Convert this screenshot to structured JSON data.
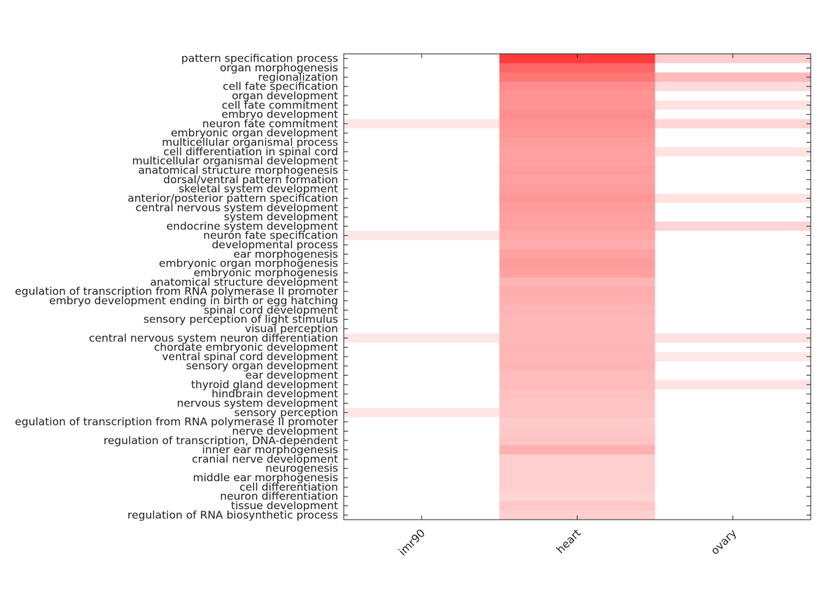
{
  "chart_data": {
    "type": "heatmap",
    "title": "",
    "xlabel": "",
    "ylabel": "",
    "colormap": {
      "low": "#ffffff",
      "high": "#ff3b3b"
    },
    "columns": [
      "imr90",
      "heart",
      "ovary"
    ],
    "rows": [
      "pattern specification process",
      "organ morphogenesis",
      "regionalization",
      "cell fate specification",
      "organ development",
      "cell fate commitment",
      "embryo development",
      "neuron fate commitment",
      "embryonic organ development",
      "multicellular organismal process",
      "cell differentiation in spinal cord",
      "multicellular organismal development",
      "anatomical structure morphogenesis",
      "dorsal/ventral pattern formation",
      "skeletal system development",
      "anterior/posterior pattern specification",
      "central nervous system development",
      "system development",
      "endocrine system development",
      "neuron fate specification",
      "developmental process",
      "ear morphogenesis",
      "embryonic organ morphogenesis",
      "embryonic morphogenesis",
      "anatomical structure development",
      "egulation of transcription from RNA polymerase II promoter",
      "embryo development ending in birth or egg hatching",
      "spinal cord development",
      "sensory perception of light stimulus",
      "visual perception",
      "central nervous system neuron differentiation",
      "chordate embryonic development",
      "ventral spinal cord development",
      "sensory organ development",
      "ear development",
      "thyroid gland development",
      "hindbrain development",
      "nervous system development",
      "sensory perception",
      "egulation of transcription from RNA polymerase II promoter",
      "nerve development",
      "regulation of transcription, DNA-dependent",
      "inner ear morphogenesis",
      "cranial nerve development",
      "neurogenesis",
      "middle ear morphogenesis",
      "cell differentiation",
      "neuron differentiation",
      "tissue development",
      "regulation of RNA biosynthetic process"
    ],
    "values": [
      [
        0,
        1.0,
        0.25
      ],
      [
        0,
        0.78,
        0
      ],
      [
        0,
        0.7,
        0.35
      ],
      [
        0,
        0.58,
        0.18
      ],
      [
        0,
        0.55,
        0
      ],
      [
        0,
        0.55,
        0.15
      ],
      [
        0,
        0.58,
        0
      ],
      [
        0.13,
        0.55,
        0.22
      ],
      [
        0,
        0.53,
        0
      ],
      [
        0,
        0.5,
        0
      ],
      [
        0,
        0.48,
        0.15
      ],
      [
        0,
        0.48,
        0
      ],
      [
        0,
        0.5,
        0
      ],
      [
        0,
        0.48,
        0
      ],
      [
        0,
        0.5,
        0
      ],
      [
        0,
        0.53,
        0.15
      ],
      [
        0,
        0.5,
        0
      ],
      [
        0,
        0.48,
        0
      ],
      [
        0,
        0.48,
        0.22
      ],
      [
        0.13,
        0.45,
        0
      ],
      [
        0,
        0.42,
        0
      ],
      [
        0,
        0.48,
        0
      ],
      [
        0,
        0.5,
        0
      ],
      [
        0,
        0.48,
        0
      ],
      [
        0,
        0.38,
        0
      ],
      [
        0,
        0.42,
        0
      ],
      [
        0,
        0.4,
        0
      ],
      [
        0,
        0.38,
        0
      ],
      [
        0,
        0.36,
        0
      ],
      [
        0,
        0.36,
        0
      ],
      [
        0.13,
        0.36,
        0.15
      ],
      [
        0,
        0.38,
        0
      ],
      [
        0,
        0.36,
        0.12
      ],
      [
        0,
        0.38,
        0
      ],
      [
        0,
        0.34,
        0
      ],
      [
        0,
        0.34,
        0.15
      ],
      [
        0,
        0.32,
        0
      ],
      [
        0,
        0.3,
        0
      ],
      [
        0.13,
        0.3,
        0
      ],
      [
        0,
        0.27,
        0
      ],
      [
        0,
        0.28,
        0
      ],
      [
        0,
        0.3,
        0
      ],
      [
        0,
        0.4,
        0
      ],
      [
        0,
        0.25,
        0
      ],
      [
        0,
        0.25,
        0
      ],
      [
        0,
        0.25,
        0
      ],
      [
        0,
        0.25,
        0
      ],
      [
        0,
        0.22,
        0
      ],
      [
        0,
        0.28,
        0
      ],
      [
        0,
        0.25,
        0
      ]
    ]
  }
}
